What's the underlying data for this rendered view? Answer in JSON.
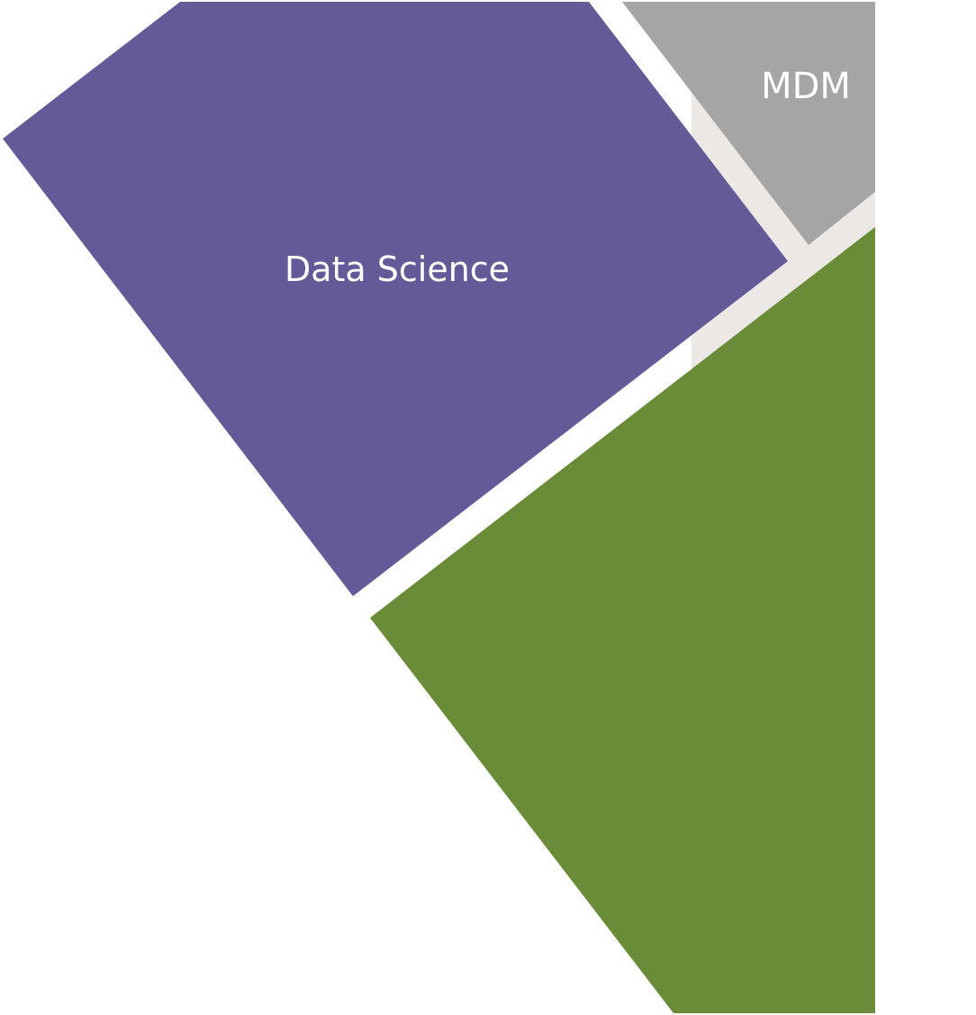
{
  "tiles": {
    "data_science": {
      "label": "Data Science",
      "color": "#655a98"
    },
    "mdm": {
      "label": "MDM",
      "color": "#a5a5a5"
    },
    "green": {
      "label": "",
      "color": "#6a8c39"
    },
    "background_photo": {
      "color": "#ece8e6"
    }
  }
}
